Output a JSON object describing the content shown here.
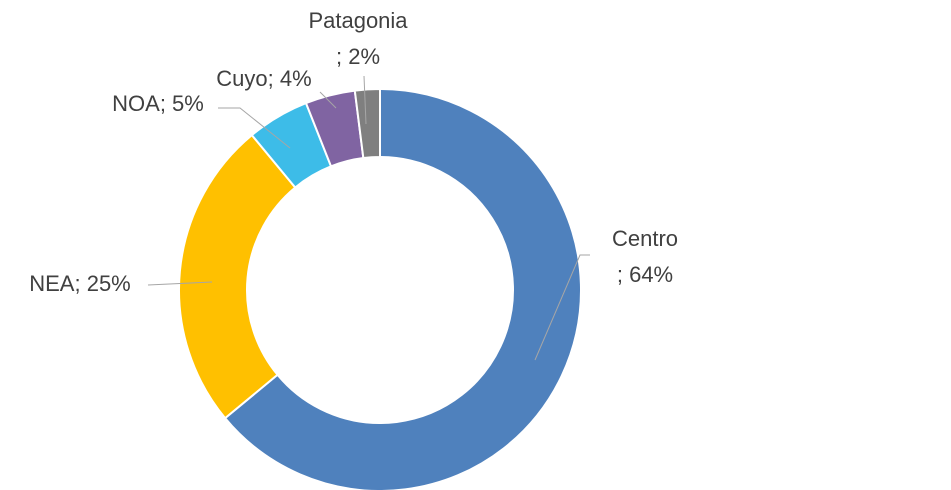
{
  "chart_data": {
    "type": "pie",
    "donut": true,
    "categories": [
      "Centro",
      "NEA",
      "NOA",
      "Cuyo",
      "Patagonia"
    ],
    "values": [
      64,
      25,
      5,
      4,
      2
    ],
    "value_labels": [
      "; 64%",
      "; 25%",
      "; 5%",
      "; 4%",
      "; 2%"
    ],
    "colors": [
      "#4f81bd",
      "#ffc000",
      "#3dbce8",
      "#8064a2",
      "#7f7f7f"
    ]
  }
}
